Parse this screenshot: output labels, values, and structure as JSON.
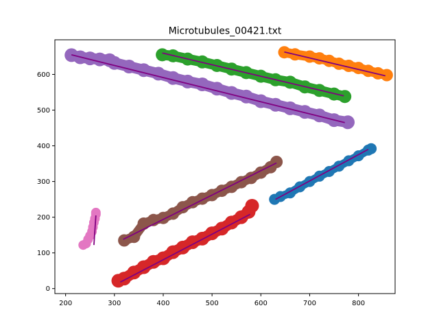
{
  "chart_data": {
    "type": "scatter",
    "title": "Microtubules_00421.txt",
    "xlabel": "",
    "ylabel": "",
    "xlim": [
      178,
      875
    ],
    "ylim": [
      -14,
      697
    ],
    "xticks": [
      200,
      300,
      400,
      500,
      600,
      700,
      800
    ],
    "yticks": [
      0,
      100,
      200,
      300,
      400,
      500,
      600
    ],
    "grid": false,
    "fit_line_color": "#800080",
    "series": [
      {
        "color": "#1f77b4",
        "fit": [
          [
            630,
            250
          ],
          [
            820,
            390
          ]
        ],
        "width": 12,
        "points": [
          [
            628,
            250
          ],
          [
            640,
            258
          ],
          [
            660,
            268
          ],
          [
            680,
            285
          ],
          [
            700,
            300
          ],
          [
            720,
            315
          ],
          [
            740,
            328
          ],
          [
            760,
            343
          ],
          [
            780,
            358
          ],
          [
            800,
            372
          ],
          [
            820,
            388
          ],
          [
            826,
            392
          ]
        ]
      },
      {
        "color": "#ff7f0e",
        "fit": [
          [
            648,
            663
          ],
          [
            855,
            596
          ]
        ],
        "width": 14,
        "points": [
          [
            648,
            662
          ],
          [
            670,
            656
          ],
          [
            700,
            650
          ],
          [
            720,
            645
          ],
          [
            740,
            638
          ],
          [
            760,
            630
          ],
          [
            780,
            624
          ],
          [
            800,
            618
          ],
          [
            820,
            610
          ],
          [
            840,
            603
          ],
          [
            858,
            598
          ]
        ]
      },
      {
        "color": "#2ca02c",
        "fit": [
          [
            398,
            660
          ],
          [
            770,
            540
          ]
        ],
        "width": 15,
        "points": [
          [
            398,
            655
          ],
          [
            420,
            652
          ],
          [
            450,
            643
          ],
          [
            480,
            635
          ],
          [
            510,
            625
          ],
          [
            540,
            615
          ],
          [
            570,
            605
          ],
          [
            600,
            595
          ],
          [
            630,
            585
          ],
          [
            660,
            578
          ],
          [
            690,
            565
          ],
          [
            720,
            555
          ],
          [
            750,
            545
          ],
          [
            772,
            538
          ]
        ]
      },
      {
        "color": "#d62728",
        "fit": [
          [
            312,
            18
          ],
          [
            578,
            208
          ]
        ],
        "width": 16,
        "points": [
          [
            308,
            22
          ],
          [
            320,
            28
          ],
          [
            340,
            45
          ],
          [
            360,
            60
          ],
          [
            380,
            75
          ],
          [
            400,
            85
          ],
          [
            420,
            102
          ],
          [
            440,
            115
          ],
          [
            460,
            130
          ],
          [
            480,
            140
          ],
          [
            500,
            155
          ],
          [
            520,
            168
          ],
          [
            540,
            185
          ],
          [
            560,
            200
          ],
          [
            575,
            215
          ],
          [
            582,
            232
          ]
        ]
      },
      {
        "color": "#9467bd",
        "fit": [
          [
            212,
            655
          ],
          [
            772,
            465
          ]
        ],
        "width": 16,
        "points": [
          [
            212,
            654
          ],
          [
            230,
            648
          ],
          [
            250,
            645
          ],
          [
            270,
            642
          ],
          [
            290,
            640
          ],
          [
            300,
            632
          ],
          [
            330,
            622
          ],
          [
            360,
            612
          ],
          [
            390,
            602
          ],
          [
            420,
            590
          ],
          [
            450,
            580
          ],
          [
            480,
            572
          ],
          [
            510,
            560
          ],
          [
            540,
            548
          ],
          [
            570,
            538
          ],
          [
            600,
            525
          ],
          [
            630,
            515
          ],
          [
            660,
            505
          ],
          [
            690,
            495
          ],
          [
            720,
            485
          ],
          [
            750,
            472
          ],
          [
            778,
            466
          ]
        ]
      },
      {
        "color": "#8c564b",
        "fit": [
          [
            318,
            138
          ],
          [
            632,
            352
          ]
        ],
        "width": 14,
        "points": [
          [
            320,
            135
          ],
          [
            340,
            145
          ],
          [
            360,
            182
          ],
          [
            380,
            192
          ],
          [
            400,
            198
          ],
          [
            420,
            210
          ],
          [
            440,
            228
          ],
          [
            460,
            242
          ],
          [
            480,
            252
          ],
          [
            500,
            262
          ],
          [
            520,
            274
          ],
          [
            540,
            285
          ],
          [
            560,
            298
          ],
          [
            580,
            310
          ],
          [
            600,
            325
          ],
          [
            620,
            340
          ],
          [
            632,
            355
          ]
        ]
      },
      {
        "color": "#e377c2",
        "fit": [
          [
            262,
            205
          ],
          [
            258,
            122
          ]
        ],
        "width": 10,
        "points": [
          [
            236,
            122
          ],
          [
            242,
            126
          ],
          [
            246,
            138
          ],
          [
            250,
            148
          ],
          [
            254,
            160
          ],
          [
            256,
            172
          ],
          [
            258,
            185
          ],
          [
            260,
            196
          ],
          [
            262,
            208
          ],
          [
            262,
            213
          ]
        ]
      }
    ]
  }
}
